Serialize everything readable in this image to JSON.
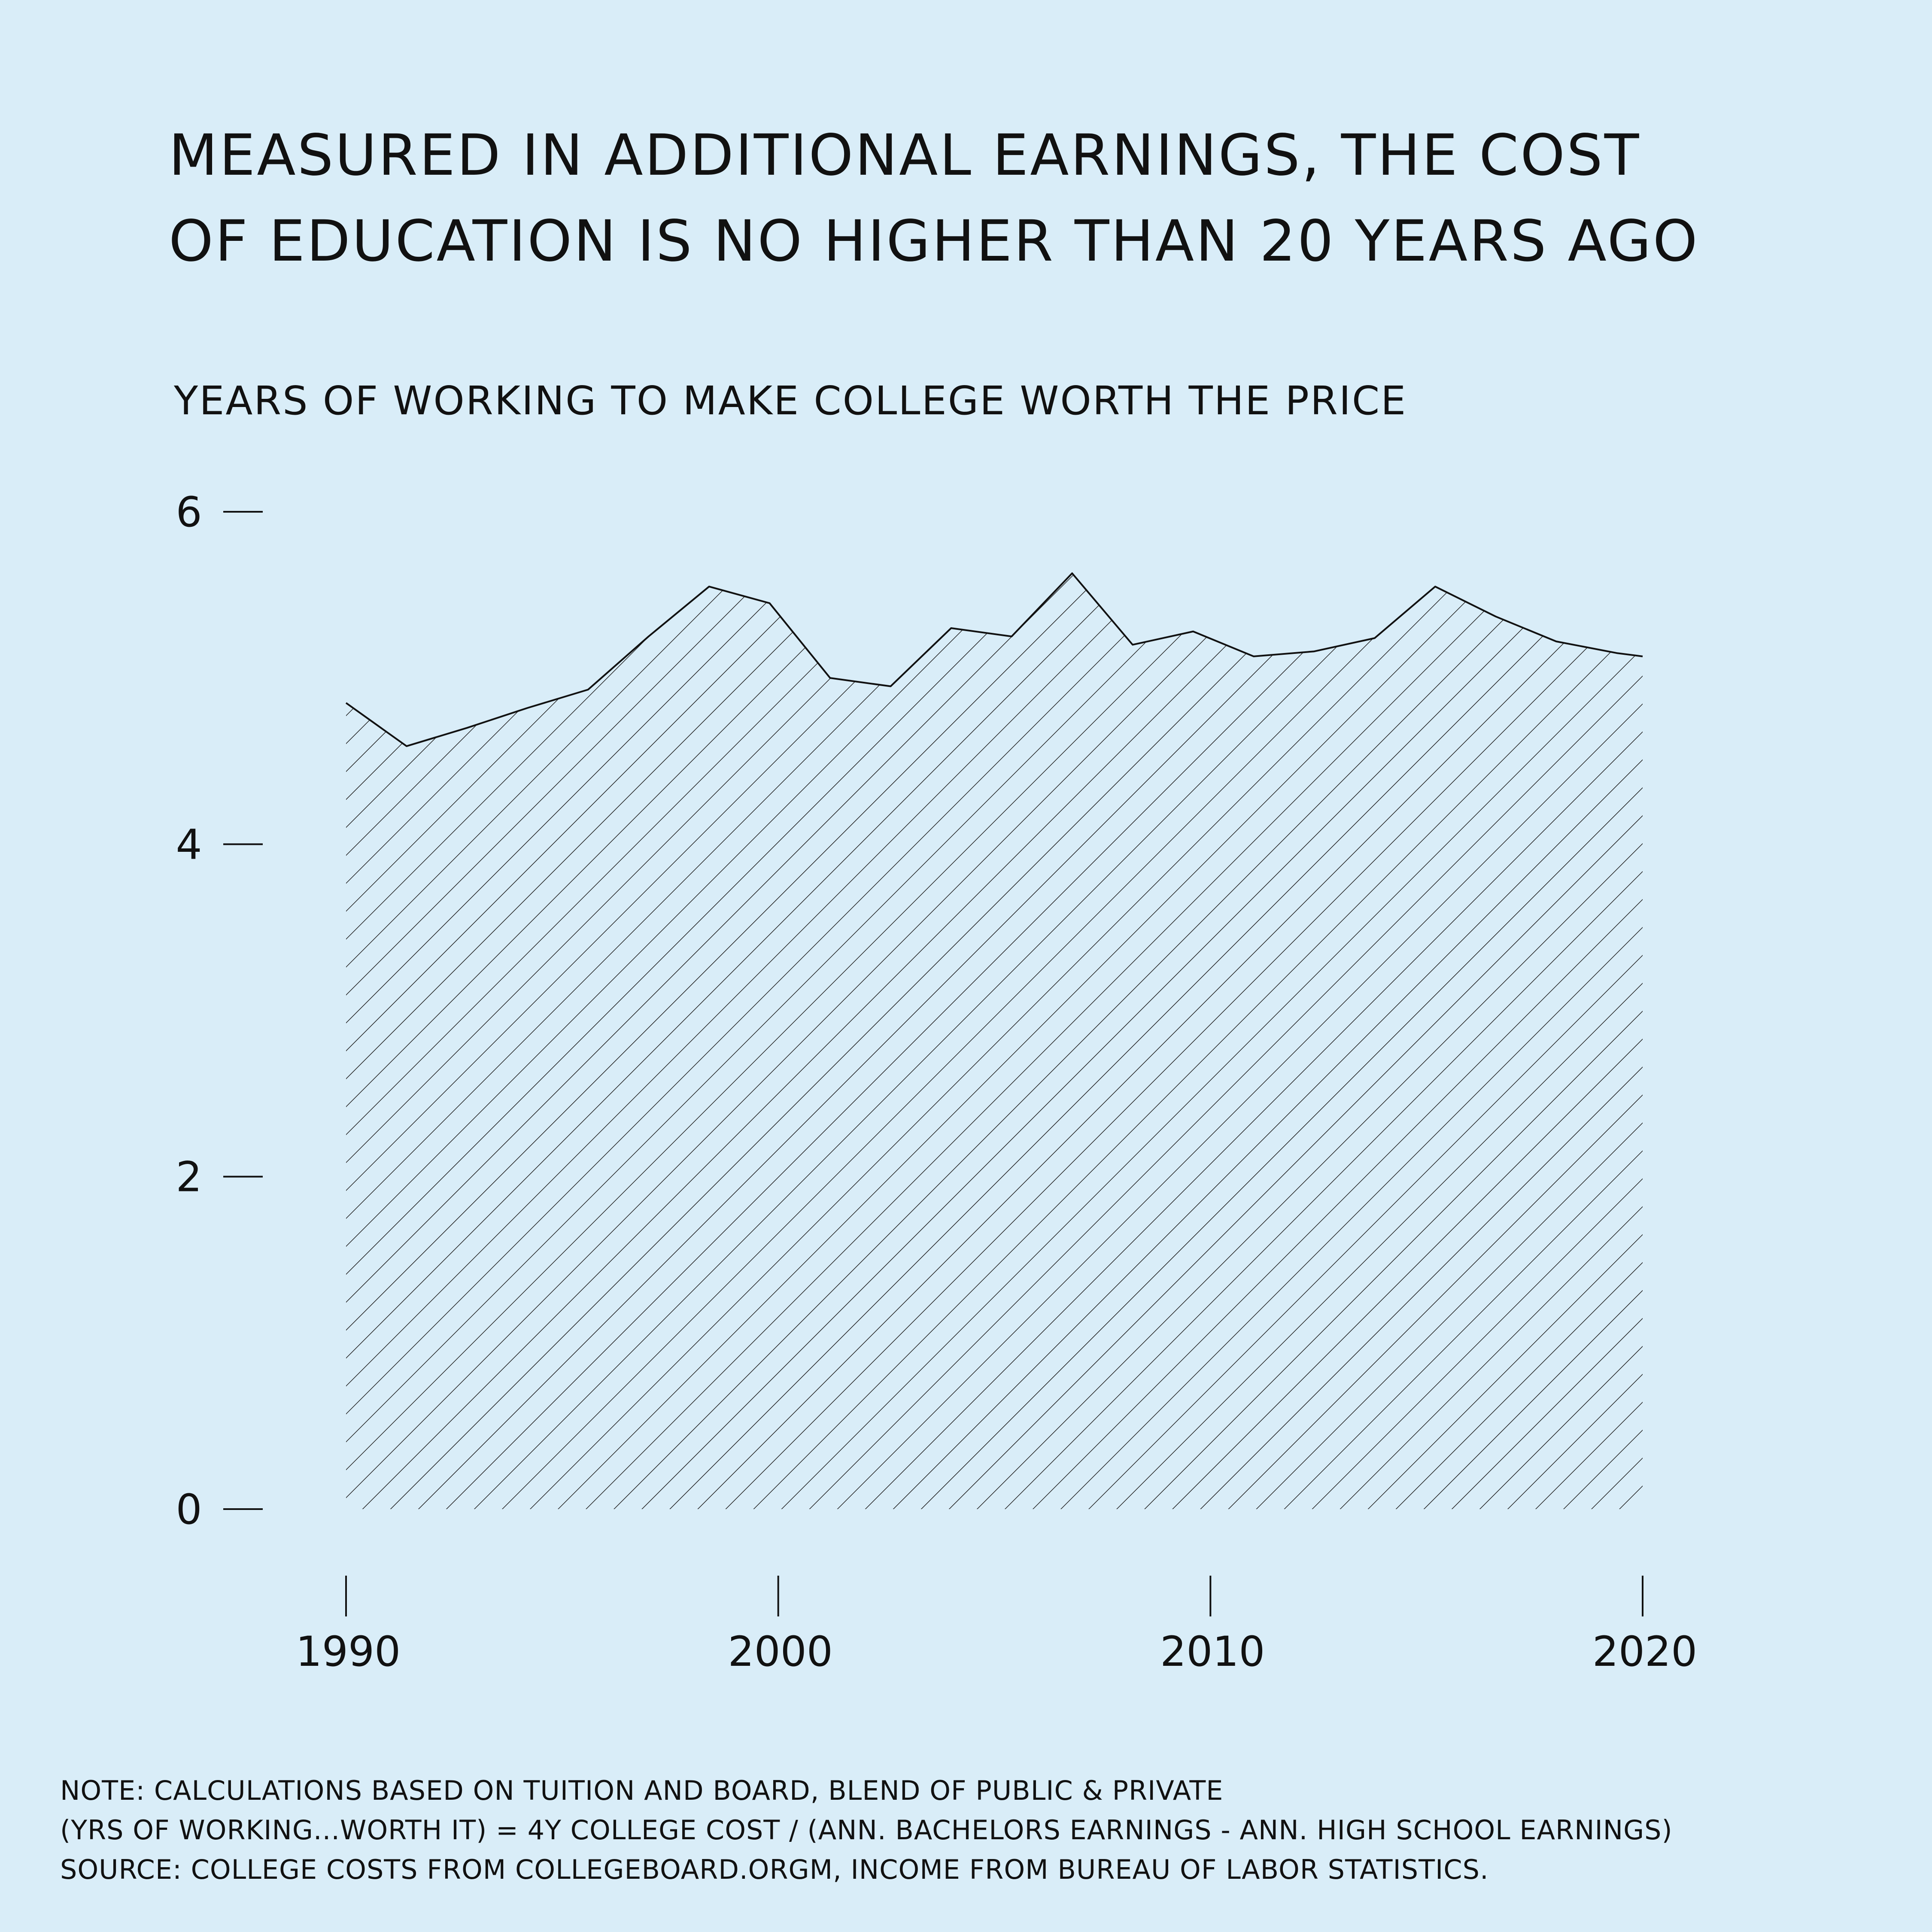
{
  "title_lines": [
    "MEASURED IN ADDITIONAL EARNINGS, THE COST",
    "OF EDUCATION IS NO HIGHER THAN 20 YEARS AGO"
  ],
  "subtitle": "YEARS OF WORKING TO MAKE COLLEGE WORTH THE PRICE",
  "notes": [
    "NOTE: CALCULATIONS BASED ON TUITION AND BOARD, BLEND OF PUBLIC & PRIVATE",
    "(YRS OF WORKING...WORTH IT) = 4Y COLLEGE COST / (ANN. BACHELORS EARNINGS - ANN. HIGH SCHOOL EARNINGS)",
    "SOURCE: COLLEGE COSTS FROM COLLEGEBOARD.ORGM, INCOME FROM BUREAU OF LABOR STATISTICS."
  ],
  "colors": {
    "background": "#d9edf8",
    "ink": "#111111"
  },
  "chart_data": {
    "type": "area",
    "fill": "diagonal-hatch",
    "title": "MEASURED IN ADDITIONAL EARNINGS, THE COST OF EDUCATION IS NO HIGHER THAN 20 YEARS AGO",
    "ylabel": "YEARS OF WORKING TO MAKE COLLEGE WORTH THE PRICE",
    "xlabel": "",
    "grid": false,
    "legend": "none",
    "xlim": [
      1990,
      2020
    ],
    "ylim": [
      0,
      6
    ],
    "x_ticks": [
      1990,
      2000,
      2010,
      2020
    ],
    "y_ticks": [
      0,
      2,
      4,
      6
    ],
    "x": [
      1990,
      1991.4,
      1992.8,
      1994.2,
      1995.6,
      1997,
      1998.4,
      1999.8,
      2001.2,
      2002.6,
      2004,
      2005.4,
      2006.8,
      2008.2,
      2009.6,
      2011,
      2012.4,
      2013.8,
      2015.2,
      2016.6,
      2018,
      2019.4,
      2020
    ],
    "values": [
      4.85,
      4.59,
      4.7,
      4.82,
      4.93,
      5.25,
      5.55,
      5.45,
      5.0,
      4.95,
      5.3,
      5.25,
      5.63,
      5.2,
      5.28,
      5.13,
      5.16,
      5.24,
      5.55,
      5.37,
      5.22,
      5.15,
      5.13
    ]
  }
}
